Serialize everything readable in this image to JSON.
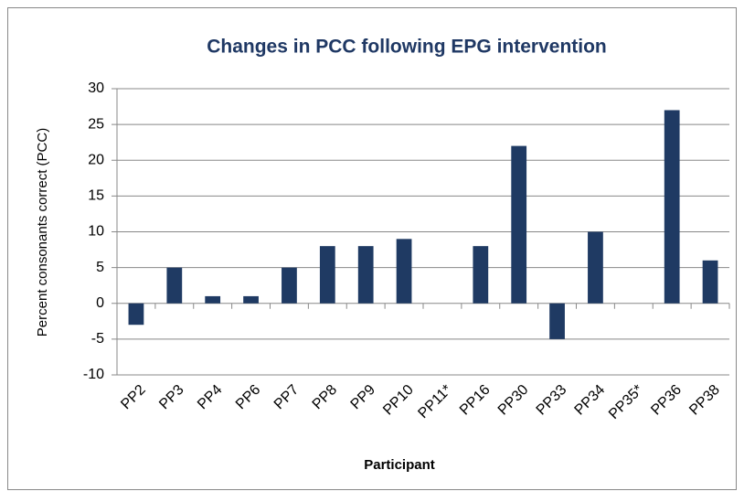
{
  "chart_data": {
    "type": "bar",
    "title": "Changes in PCC following EPG intervention",
    "x_label": "Participant",
    "y_label": "Percent consonants correct (PCC)",
    "categories": [
      "PP2",
      "PP3",
      "PP4",
      "PP6",
      "PP7",
      "PP8",
      "PP9",
      "PP10",
      "PP11*",
      "PP16",
      "PP30",
      "PP33",
      "PP34",
      "PP35*",
      "PP36",
      "PP38"
    ],
    "values": [
      -3,
      5,
      1,
      1,
      5,
      8,
      8,
      9,
      0,
      8,
      22,
      -5,
      10,
      0,
      27,
      6
    ],
    "color": "#1f3a63",
    "ylim": [
      -10,
      30
    ],
    "yticks": [
      -10,
      -5,
      0,
      5,
      10,
      15,
      20,
      25,
      30
    ],
    "grid": true
  }
}
